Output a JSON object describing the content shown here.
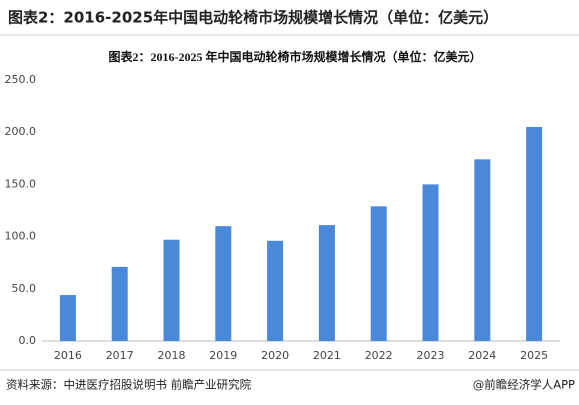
{
  "header": {
    "title": "图表2：2016-2025年中国电动轮椅市场规模增长情况（单位：亿美元）"
  },
  "chart_data": {
    "type": "bar",
    "title": "图表2：2016-2025 年中国电动轮椅市场规模增长情况（单位：亿美元）",
    "categories": [
      "2016",
      "2017",
      "2018",
      "2019",
      "2020",
      "2021",
      "2022",
      "2023",
      "2024",
      "2025"
    ],
    "values": [
      44,
      71,
      97,
      110,
      96,
      111,
      129,
      150,
      174,
      205
    ],
    "color": "#4a88da",
    "ylim": [
      0,
      250
    ],
    "yticks": [
      {
        "value": 0,
        "label": "0.0"
      },
      {
        "value": 50,
        "label": "50.0"
      },
      {
        "value": 100,
        "label": "100.0"
      },
      {
        "value": 150,
        "label": "150.0"
      },
      {
        "value": 200,
        "label": "200.0"
      },
      {
        "value": 250,
        "label": "250.0"
      }
    ],
    "grid": false
  },
  "footer": {
    "source": "资料来源：中进医疗招股说明书  前瞻产业研究院",
    "credit": "@前瞻经济学人APP"
  }
}
